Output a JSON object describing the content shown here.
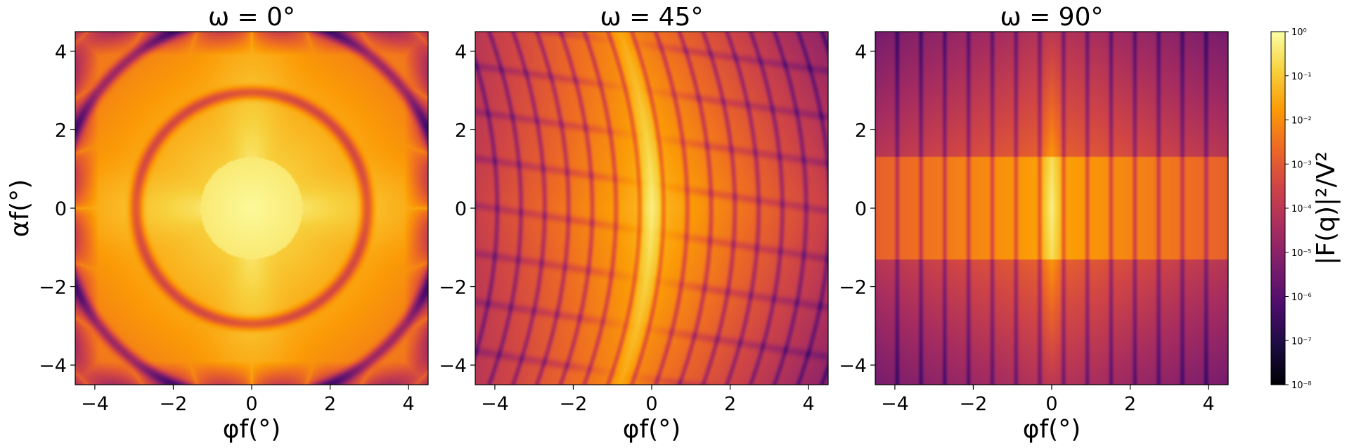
{
  "chart_data": [
    {
      "type": "heatmap",
      "title": "ω = 0°",
      "xlabel": "φf(°)",
      "ylabel": "αf(°)",
      "xlim": [
        -4.5,
        4.5
      ],
      "ylim": [
        -4.5,
        4.5
      ],
      "xticks": [
        -4,
        -2,
        0,
        2,
        4
      ],
      "yticks": [
        -4,
        -2,
        0,
        2,
        4
      ],
      "xtick_labels": [
        "−4",
        "−2",
        "0",
        "2",
        "4"
      ],
      "ytick_labels": [
        "−4",
        "−2",
        "0",
        "2",
        "4"
      ],
      "omega_deg": 0,
      "colormap": "inferno",
      "color_scale": "log"
    },
    {
      "type": "heatmap",
      "title": "ω = 45°",
      "xlabel": "φf(°)",
      "ylabel": "",
      "xlim": [
        -4.5,
        4.5
      ],
      "ylim": [
        -4.5,
        4.5
      ],
      "xticks": [
        -4,
        -2,
        0,
        2,
        4
      ],
      "yticks": [
        -4,
        -2,
        0,
        2,
        4
      ],
      "xtick_labels": [
        "−4",
        "−2",
        "0",
        "2",
        "4"
      ],
      "ytick_labels": [
        "−4",
        "−2",
        "0",
        "2",
        "4"
      ],
      "omega_deg": 45,
      "colormap": "inferno",
      "color_scale": "log"
    },
    {
      "type": "heatmap",
      "title": "ω = 90°",
      "xlabel": "φf(°)",
      "ylabel": "",
      "xlim": [
        -4.5,
        4.5
      ],
      "ylim": [
        -4.5,
        4.5
      ],
      "xticks": [
        -4,
        -2,
        0,
        2,
        4
      ],
      "yticks": [
        -4,
        -2,
        0,
        2,
        4
      ],
      "xtick_labels": [
        "−4",
        "−2",
        "0",
        "2",
        "4"
      ],
      "ytick_labels": [
        "−4",
        "−2",
        "0",
        "2",
        "4"
      ],
      "omega_deg": 90,
      "colormap": "inferno",
      "color_scale": "log"
    }
  ],
  "colorbar": {
    "label": "|F(q)|²/V²",
    "scale": "log",
    "range": [
      1e-08,
      1
    ],
    "ticks": [
      0,
      -1,
      -2,
      -3,
      -4,
      -5,
      -6,
      -7,
      -8
    ],
    "tick_labels": [
      "10⁰",
      "10⁻¹",
      "10⁻²",
      "10⁻³",
      "10⁻⁴",
      "10⁻⁵",
      "10⁻⁶",
      "10⁻⁷",
      "10⁻⁸"
    ],
    "colors": [
      "#000004",
      "#1b0c41",
      "#4a0c6b",
      "#781c6d",
      "#a52c60",
      "#cf4446",
      "#ed6925",
      "#fb9b06",
      "#f7d13d",
      "#fcffa4"
    ]
  }
}
